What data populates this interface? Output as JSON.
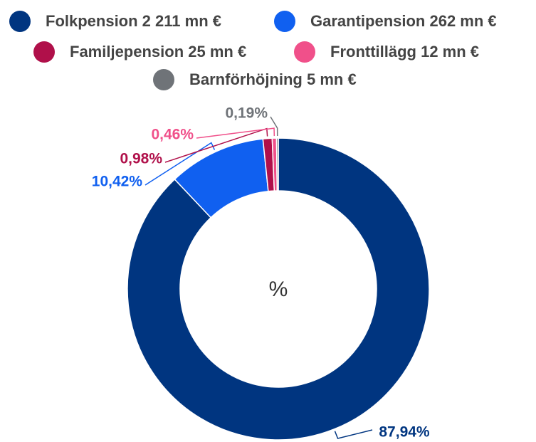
{
  "chart_data": {
    "type": "donut",
    "center_label": "%",
    "categories": [
      "Folkpension 2 211 mn €",
      "Garantipension 262 mn €",
      "Familjepension 25 mn €",
      "Fronttillägg 12 mn €",
      "Barnförhöjning 5 mn €"
    ],
    "values": [
      87.94,
      10.42,
      0.98,
      0.46,
      0.19
    ],
    "value_labels": [
      "87,94%",
      "10,42%",
      "0,98%",
      "0,46%",
      "0,19%"
    ],
    "colors": [
      "#003580",
      "#1060f0",
      "#b0104a",
      "#f0508a",
      "#6f7378"
    ],
    "legend": "top"
  }
}
